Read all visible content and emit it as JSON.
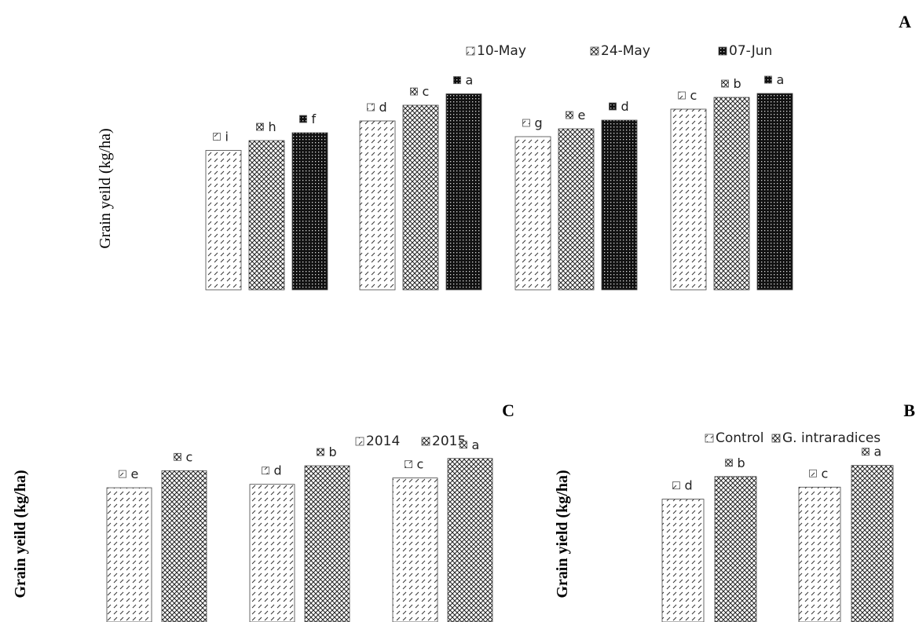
{
  "chart_data": [
    {
      "panel": "A",
      "type": "bar",
      "ylabel": "Grain yeild (kg/ha)",
      "series": [
        {
          "name": "10-May",
          "pattern": "hatch",
          "values": [
            3.55,
            4.3,
            3.9,
            4.6
          ],
          "letters": [
            "i",
            "d",
            "g",
            "c"
          ]
        },
        {
          "name": "24-May",
          "pattern": "cross",
          "values": [
            3.8,
            4.7,
            4.1,
            4.9
          ],
          "letters": [
            "h",
            "c",
            "e",
            "b"
          ]
        },
        {
          "name": "07-Jun",
          "pattern": "dots",
          "values": [
            4.0,
            4.99,
            4.32,
            5.0
          ],
          "letters": [
            "f",
            "a",
            "d",
            "a"
          ]
        }
      ],
      "ylim": [
        0,
        5.4
      ]
    },
    {
      "panel": "C",
      "type": "bar",
      "ylabel": "Grain yeild (kg/ha)",
      "series": [
        {
          "name": "2014",
          "pattern": "hatch",
          "values": [
            2.75,
            2.82,
            2.95
          ],
          "letters": [
            "e",
            "d",
            "c"
          ]
        },
        {
          "name": "2015",
          "pattern": "cross",
          "values": [
            3.1,
            3.2,
            3.35
          ],
          "letters": [
            "c",
            "b",
            "a"
          ]
        }
      ],
      "ylim": [
        0,
        3.7
      ]
    },
    {
      "panel": "B",
      "type": "bar",
      "ylabel": "Grain yield (kg/ha)",
      "series": [
        {
          "name": "Control",
          "pattern": "hatch",
          "values": [
            2.55,
            2.8
          ],
          "letters": [
            "d",
            "c"
          ]
        },
        {
          "name": "G. intraradices",
          "pattern": "cross",
          "values": [
            3.02,
            3.25
          ],
          "letters": [
            "b",
            "a"
          ]
        }
      ],
      "ylim": [
        0,
        3.75
      ]
    }
  ]
}
